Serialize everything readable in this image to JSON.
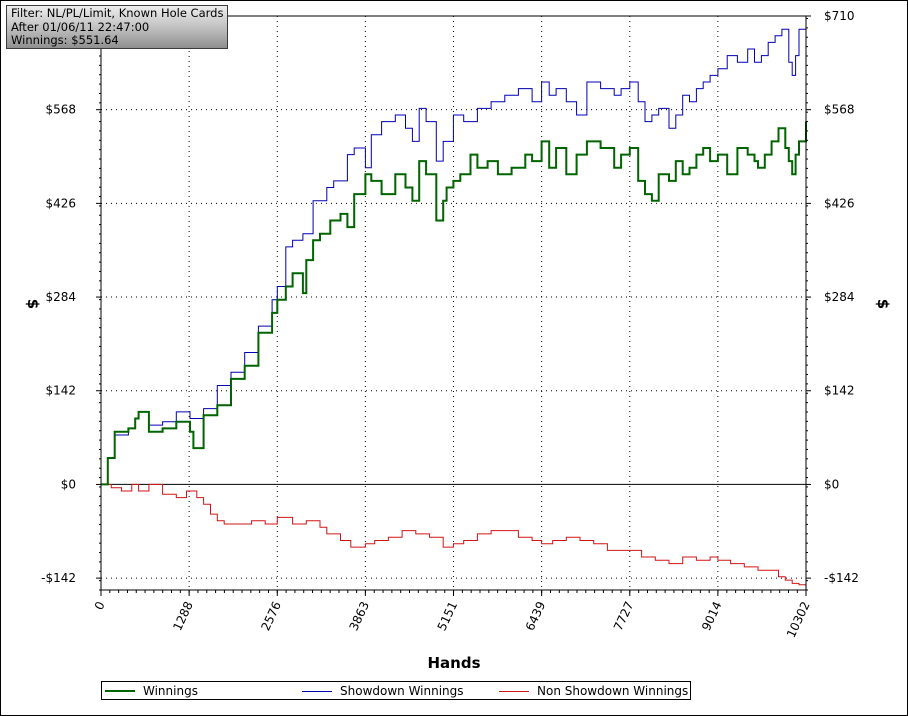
{
  "filter_box": {
    "line1": "Filter: NL/PL/Limit, Known Hole Cards",
    "line2": "After 01/06/11 22:47:00",
    "line3": "Winnings: $551.64"
  },
  "colors": {
    "winnings": "#006400",
    "showdown": "#0000b4",
    "non_showdown": "#d21414"
  },
  "chart_data": {
    "type": "line",
    "xlabel": "Hands",
    "ylabel": "$",
    "ylabel_right": "$",
    "xlim": [
      0,
      10302
    ],
    "ylim": [
      -160,
      710
    ],
    "grid": true,
    "legend_placement": "bottom",
    "x_ticks": [
      0,
      1288,
      2576,
      3863,
      5151,
      6439,
      7727,
      9014,
      10302
    ],
    "x_tick_labels": [
      "0",
      "1288",
      "2576",
      "3863",
      "5151",
      "6439",
      "7727",
      "9014",
      "10302"
    ],
    "y_ticks": [
      -142,
      0,
      142,
      284,
      426,
      568,
      710
    ],
    "y_tick_labels": [
      "-$142",
      "$0",
      "$142",
      "$284",
      "$426",
      "$568",
      "$710"
    ],
    "series": [
      {
        "name": "Winnings",
        "x": [
          0,
          100,
          200,
          400,
          500,
          550,
          700,
          900,
          1100,
          1300,
          1350,
          1500,
          1700,
          1900,
          2100,
          2300,
          2500,
          2576,
          2700,
          2800,
          2950,
          3000,
          3100,
          3200,
          3350,
          3500,
          3600,
          3700,
          3863,
          3950,
          4100,
          4300,
          4450,
          4550,
          4650,
          4750,
          4900,
          5000,
          5050,
          5150,
          5250,
          5400,
          5500,
          5650,
          5800,
          6000,
          6200,
          6300,
          6439,
          6550,
          6650,
          6800,
          6950,
          7100,
          7300,
          7500,
          7600,
          7727,
          7850,
          7950,
          8050,
          8150,
          8300,
          8400,
          8500,
          8600,
          8700,
          8800,
          8900,
          9014,
          9150,
          9300,
          9450,
          9550,
          9600,
          9700,
          9800,
          9900,
          10000,
          10050,
          10100,
          10150,
          10200,
          10302
        ],
        "y": [
          0,
          40,
          80,
          85,
          100,
          110,
          80,
          85,
          95,
          80,
          55,
          105,
          120,
          160,
          180,
          230,
          260,
          280,
          300,
          320,
          290,
          340,
          370,
          380,
          400,
          410,
          390,
          440,
          470,
          460,
          440,
          470,
          450,
          430,
          490,
          470,
          400,
          430,
          450,
          460,
          470,
          500,
          480,
          490,
          470,
          480,
          500,
          490,
          520,
          480,
          510,
          470,
          500,
          520,
          510,
          480,
          500,
          510,
          460,
          440,
          430,
          470,
          460,
          490,
          470,
          480,
          500,
          510,
          490,
          500,
          470,
          510,
          500,
          490,
          480,
          500,
          520,
          540,
          510,
          490,
          470,
          500,
          520,
          550
        ]
      },
      {
        "name": "Showdown Winnings",
        "x": [
          0,
          100,
          200,
          400,
          500,
          550,
          700,
          900,
          1100,
          1300,
          1400,
          1500,
          1700,
          1900,
          2100,
          2300,
          2500,
          2576,
          2700,
          2800,
          2950,
          3100,
          3300,
          3400,
          3600,
          3700,
          3863,
          3950,
          4100,
          4300,
          4450,
          4550,
          4650,
          4750,
          4900,
          5000,
          5150,
          5300,
          5500,
          5700,
          5900,
          6100,
          6300,
          6439,
          6550,
          6650,
          6800,
          6950,
          7100,
          7300,
          7500,
          7600,
          7727,
          7850,
          7950,
          8050,
          8150,
          8300,
          8400,
          8500,
          8600,
          8700,
          8800,
          8900,
          9014,
          9150,
          9300,
          9450,
          9550,
          9650,
          9750,
          9850,
          9950,
          10050,
          10100,
          10150,
          10200,
          10302
        ],
        "y": [
          0,
          40,
          75,
          85,
          100,
          110,
          90,
          95,
          110,
          100,
          100,
          115,
          150,
          170,
          200,
          240,
          280,
          300,
          360,
          370,
          380,
          430,
          450,
          460,
          500,
          510,
          480,
          530,
          550,
          560,
          540,
          520,
          570,
          550,
          490,
          520,
          560,
          550,
          570,
          580,
          590,
          600,
          580,
          610,
          590,
          600,
          580,
          560,
          610,
          600,
          590,
          600,
          610,
          580,
          550,
          560,
          570,
          540,
          560,
          590,
          580,
          600,
          610,
          620,
          630,
          650,
          640,
          660,
          640,
          650,
          670,
          680,
          690,
          640,
          620,
          650,
          690,
          710
        ]
      },
      {
        "name": "Non Showdown Winnings",
        "x": [
          0,
          150,
          300,
          450,
          550,
          700,
          900,
          1100,
          1250,
          1400,
          1500,
          1600,
          1700,
          1800,
          2000,
          2200,
          2400,
          2576,
          2800,
          3000,
          3200,
          3300,
          3500,
          3650,
          3863,
          4000,
          4200,
          4400,
          4600,
          4800,
          5000,
          5151,
          5300,
          5500,
          5700,
          5900,
          6100,
          6300,
          6439,
          6600,
          6800,
          7000,
          7200,
          7400,
          7600,
          7727,
          7900,
          8100,
          8300,
          8500,
          8700,
          8900,
          9014,
          9200,
          9400,
          9600,
          9800,
          9900,
          10000,
          10100,
          10200,
          10302
        ],
        "y": [
          0,
          -5,
          -10,
          0,
          -10,
          0,
          -15,
          -20,
          -10,
          -20,
          -30,
          -45,
          -55,
          -60,
          -60,
          -55,
          -60,
          -50,
          -60,
          -55,
          -65,
          -75,
          -85,
          -95,
          -90,
          -85,
          -80,
          -70,
          -75,
          -80,
          -95,
          -90,
          -85,
          -75,
          -70,
          -70,
          -80,
          -85,
          -90,
          -85,
          -80,
          -85,
          -90,
          -100,
          -100,
          -100,
          -110,
          -115,
          -120,
          -110,
          -115,
          -110,
          -115,
          -120,
          -125,
          -130,
          -130,
          -140,
          -145,
          -150,
          -152,
          -155
        ]
      }
    ]
  }
}
